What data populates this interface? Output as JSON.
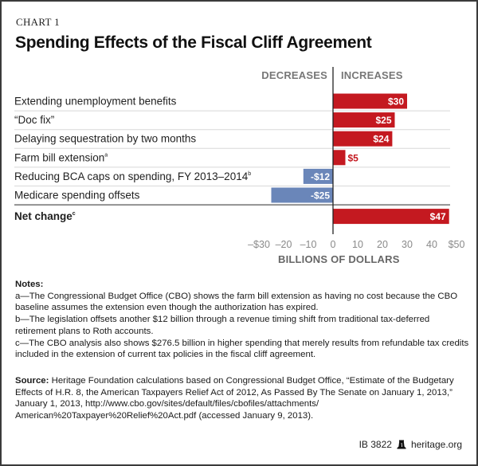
{
  "kicker": "CHART 1",
  "title": "Spending Effects of the Fiscal Cliff Agreement",
  "colors": {
    "increase": "#c41920",
    "decrease": "#6a86b9",
    "rule": "#d8d8d8",
    "axis": "#222222"
  },
  "chart_data": {
    "type": "bar",
    "orientation": "horizontal",
    "title": "Spending Effects of the Fiscal Cliff Agreement",
    "column_headers": {
      "left": "DECREASES",
      "right": "INCREASES"
    },
    "categories": [
      {
        "label": "Extending unemployment benefits",
        "note": ""
      },
      {
        "label": "“Doc fix”",
        "note": ""
      },
      {
        "label": "Delaying sequestration by two months",
        "note": ""
      },
      {
        "label": "Farm bill extension",
        "note": "a"
      },
      {
        "label": "Reducing BCA caps on spending, FY 2013–2014",
        "note": "b"
      },
      {
        "label": "Medicare spending offsets",
        "note": ""
      },
      {
        "label": "Net change",
        "note": "c"
      }
    ],
    "values": [
      30,
      25,
      24,
      5,
      -12,
      -25,
      47
    ],
    "value_labels": [
      "$30",
      "$25",
      "$24",
      "$5",
      "-$12",
      "-$25",
      "$47"
    ],
    "xlabel": "BILLIONS OF DOLLARS",
    "ylabel": "",
    "xlim": [
      -30,
      50
    ],
    "xticks": [
      -30,
      -20,
      -10,
      0,
      10,
      20,
      30,
      40,
      50
    ],
    "xtick_labels": [
      "–$30",
      "–20",
      "–10",
      "0",
      "10",
      "20",
      "30",
      "40",
      "$50"
    ],
    "grid": false,
    "legend": "none"
  },
  "notes": {
    "heading": "Notes:",
    "items": [
      "a—The Congressional Budget Office (CBO) shows the farm bill extension as having no cost because the CBO baseline assumes the extension even though the authorization has expired.",
      "b—The legislation offsets another $12 billion through a revenue timing shift from traditional tax-deferred retirement plans to Roth accounts.",
      "c—The CBO analysis also shows $276.5 billion in higher spending that merely results from refundable tax credits included in the extension of current tax policies in the fiscal cliff agreement."
    ]
  },
  "source": {
    "label": "Source:",
    "text": " Heritage Foundation calculations based on Congressional Budget Office, “Estimate of the Budgetary Effects of H.R. 8, the American Taxpayers Relief Act of 2012, As Passed By The Senate on January 1, 2013,” January 1, 2013, http://www.cbo.gov/sites/default/files/cbofiles/attachments/ American%20Taxpayer%20Relief%20Act.pdf (accessed January 9, 2013)."
  },
  "footer": {
    "id": "IB 3822",
    "site": "heritage.org",
    "logo_icon": "liberty-bell-icon"
  }
}
